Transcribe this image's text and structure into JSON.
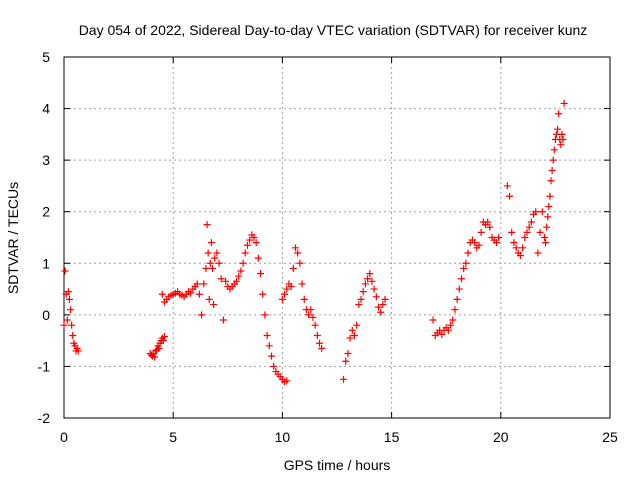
{
  "chart_data": {
    "type": "scatter",
    "title": "Day 054 of 2022, Sidereal Day-to-day VTEC variation (SDTVAR) for receiver kunz",
    "xlabel": "GPS time / hours",
    "ylabel": "SDTVAR / TECUs",
    "xlim": [
      0,
      25
    ],
    "ylim": [
      -2,
      5
    ],
    "xticks": [
      0,
      5,
      10,
      15,
      20,
      25
    ],
    "yticks": [
      -2,
      -1,
      0,
      1,
      2,
      3,
      4,
      5
    ],
    "grid": true,
    "marker": "plus",
    "color": "#ff0000",
    "series": [
      {
        "x": [
          0.0,
          0.05,
          0.1,
          0.15,
          0.2,
          0.25,
          0.3,
          0.35,
          0.4,
          0.45,
          0.5,
          0.55,
          0.6,
          0.65
        ],
        "y": [
          -0.2,
          0.85,
          0.4,
          -0.1,
          0.45,
          0.3,
          0.1,
          -0.2,
          -0.4,
          -0.55,
          -0.6,
          -0.7,
          -0.65,
          -0.7
        ]
      },
      {
        "x": [
          3.95,
          4.0,
          4.05,
          4.1,
          4.15,
          4.2,
          4.25,
          4.3,
          4.35,
          4.4,
          4.45,
          4.5,
          4.55,
          4.6
        ],
        "y": [
          -0.75,
          -0.78,
          -0.8,
          -0.75,
          -0.82,
          -0.7,
          -0.68,
          -0.6,
          -0.65,
          -0.55,
          -0.5,
          -0.45,
          -0.5,
          -0.42
        ]
      },
      {
        "x": [
          4.5,
          4.6,
          4.7,
          4.8,
          4.9,
          5.0,
          5.1,
          5.2,
          5.3,
          5.4,
          5.5,
          5.6,
          5.7,
          5.8,
          5.9,
          6.0,
          6.1,
          6.2,
          6.3,
          6.4,
          6.5,
          6.55,
          6.6,
          6.65,
          6.7,
          6.75,
          6.8,
          6.85,
          6.9,
          7.0,
          7.1,
          7.2,
          7.3,
          7.4,
          7.5,
          7.6,
          7.7,
          7.8,
          7.9,
          8.0,
          8.1,
          8.2,
          8.3,
          8.4,
          8.5,
          8.6,
          8.7,
          8.8,
          8.9,
          9.0,
          9.1,
          9.2,
          9.3,
          9.4,
          9.5,
          9.6,
          9.7,
          9.8,
          9.9,
          10.0,
          10.1,
          10.2
        ],
        "y": [
          0.4,
          0.25,
          0.3,
          0.35,
          0.38,
          0.4,
          0.42,
          0.45,
          0.4,
          0.38,
          0.35,
          0.4,
          0.45,
          0.42,
          0.5,
          0.55,
          0.6,
          0.4,
          0.0,
          0.6,
          0.9,
          1.75,
          1.2,
          0.3,
          1.0,
          1.4,
          0.9,
          0.2,
          1.1,
          1.2,
          1.0,
          0.7,
          -0.1,
          0.65,
          0.55,
          0.5,
          0.55,
          0.6,
          0.65,
          0.75,
          0.85,
          1.0,
          1.2,
          1.35,
          1.45,
          1.55,
          1.5,
          1.4,
          1.1,
          0.8,
          0.4,
          0.0,
          -0.4,
          -0.6,
          -0.8,
          -1.0,
          -1.1,
          -1.15,
          -1.2,
          -1.25,
          -1.3,
          -1.28
        ]
      },
      {
        "x": [
          10.0,
          10.1,
          10.2,
          10.3,
          10.4,
          10.5,
          10.6,
          10.7,
          10.8,
          10.9,
          11.0,
          11.1,
          11.2,
          11.3,
          11.4,
          11.5,
          11.6,
          11.7,
          11.8
        ],
        "y": [
          0.3,
          0.4,
          0.5,
          0.6,
          0.55,
          0.9,
          1.3,
          1.2,
          1.0,
          0.6,
          0.3,
          0.1,
          0.0,
          0.1,
          -0.05,
          -0.2,
          -0.4,
          -0.55,
          -0.65
        ]
      },
      {
        "x": [
          12.8,
          12.9,
          13.0,
          13.1,
          13.2,
          13.3,
          13.4,
          13.5,
          13.6,
          13.7,
          13.8,
          13.9,
          14.0,
          14.1,
          14.2,
          14.3,
          14.4,
          14.5,
          14.6,
          14.7
        ],
        "y": [
          -1.25,
          -0.9,
          -0.75,
          -0.45,
          -0.3,
          -0.4,
          -0.2,
          0.2,
          0.3,
          0.45,
          0.6,
          0.7,
          0.8,
          0.65,
          0.5,
          0.35,
          0.15,
          0.05,
          0.2,
          0.3
        ]
      },
      {
        "x": [
          16.9,
          17.0,
          17.1,
          17.2,
          17.3,
          17.4,
          17.5,
          17.6,
          17.7,
          17.8,
          17.9,
          18.0,
          18.1,
          18.2,
          18.3,
          18.4,
          18.5,
          18.6,
          18.7,
          18.8,
          18.9,
          19.0,
          19.1,
          19.2,
          19.3,
          19.4,
          19.5,
          19.6,
          19.7,
          19.8,
          19.9
        ],
        "y": [
          -0.1,
          -0.4,
          -0.35,
          -0.3,
          -0.38,
          -0.3,
          -0.25,
          -0.3,
          -0.2,
          -0.1,
          0.1,
          0.3,
          0.5,
          0.7,
          0.9,
          1.0,
          1.2,
          1.4,
          1.45,
          1.4,
          1.3,
          1.35,
          1.6,
          1.8,
          1.75,
          1.8,
          1.7,
          1.5,
          1.45,
          1.4,
          1.5
        ]
      },
      {
        "x": [
          20.3,
          20.4,
          20.5,
          20.6,
          20.7,
          20.8,
          20.9,
          21.0,
          21.1,
          21.2,
          21.3,
          21.4,
          21.5,
          21.6,
          21.7,
          21.8,
          21.9,
          22.0,
          22.05,
          22.1,
          22.15,
          22.2,
          22.25,
          22.3,
          22.35,
          22.4,
          22.45,
          22.5,
          22.55,
          22.6,
          22.65,
          22.7,
          22.75,
          22.8,
          22.85,
          22.9
        ],
        "y": [
          2.5,
          2.3,
          1.6,
          1.4,
          1.3,
          1.2,
          1.15,
          1.3,
          1.5,
          1.6,
          1.7,
          1.8,
          1.95,
          2.0,
          1.2,
          1.6,
          2.0,
          1.5,
          1.4,
          1.7,
          1.9,
          2.1,
          2.3,
          2.6,
          2.8,
          3.0,
          3.2,
          3.4,
          3.5,
          3.6,
          3.9,
          3.4,
          3.3,
          3.5,
          3.4,
          4.1
        ]
      }
    ]
  }
}
